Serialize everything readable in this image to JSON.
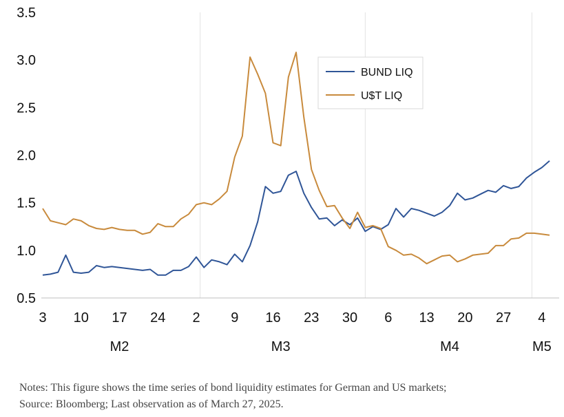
{
  "chart_data": {
    "type": "line",
    "title": "",
    "xlabel": "",
    "ylabel": "",
    "ylim": [
      0.5,
      3.5
    ],
    "yticks": [
      "0.5",
      "1.0",
      "1.5",
      "2.0",
      "2.5",
      "3.0",
      "3.5"
    ],
    "x_tick_labels": [
      "3",
      "10",
      "17",
      "24",
      "2",
      "9",
      "16",
      "23",
      "30",
      "6",
      "13",
      "20",
      "27",
      "4"
    ],
    "month_labels": [
      "M2",
      "M3",
      "M4",
      "M5"
    ],
    "grid": "vertical lines at month boundaries",
    "legend_position": "top-center",
    "series": [
      {
        "name": "BUND LIQ",
        "color": "#2F5597",
        "values": [
          0.74,
          0.75,
          0.77,
          0.95,
          0.77,
          0.76,
          0.77,
          0.84,
          0.82,
          0.83,
          0.82,
          0.81,
          0.8,
          0.79,
          0.8,
          0.74,
          0.74,
          0.79,
          0.79,
          0.83,
          0.93,
          0.82,
          0.9,
          0.88,
          0.85,
          0.96,
          0.88,
          1.05,
          1.3,
          1.67,
          1.6,
          1.62,
          1.79,
          1.83,
          1.6,
          1.45,
          1.33,
          1.34,
          1.26,
          1.32,
          1.27,
          1.34,
          1.2,
          1.25,
          1.22,
          1.27,
          1.44,
          1.35,
          1.44,
          1.42,
          1.39,
          1.36,
          1.4,
          1.47,
          1.6,
          1.53,
          1.55,
          1.59,
          1.63,
          1.61,
          1.68,
          1.65,
          1.67,
          1.76,
          1.82,
          1.87,
          1.94
        ]
      },
      {
        "name": "U$T LIQ",
        "color": "#C88A3C",
        "values": [
          1.44,
          1.31,
          1.29,
          1.27,
          1.33,
          1.31,
          1.26,
          1.23,
          1.22,
          1.24,
          1.22,
          1.21,
          1.21,
          1.17,
          1.19,
          1.28,
          1.25,
          1.25,
          1.33,
          1.38,
          1.48,
          1.5,
          1.48,
          1.54,
          1.62,
          1.98,
          2.2,
          3.03,
          2.85,
          2.65,
          2.13,
          2.1,
          2.82,
          3.08,
          2.4,
          1.85,
          1.63,
          1.46,
          1.47,
          1.34,
          1.23,
          1.4,
          1.24,
          1.26,
          1.23,
          1.04,
          1.0,
          0.95,
          0.96,
          0.92,
          0.86,
          0.9,
          0.94,
          0.95,
          0.88,
          0.91,
          0.95,
          0.96,
          0.97,
          1.05,
          1.05,
          1.12,
          1.13,
          1.18,
          1.18,
          1.17,
          1.16
        ]
      }
    ]
  },
  "notes": {
    "line1": "Notes: This figure shows the time series of bond liquidity estimates for German and US markets;",
    "line2": "Source: Bloomberg; Last observation as of March 27, 2025."
  }
}
